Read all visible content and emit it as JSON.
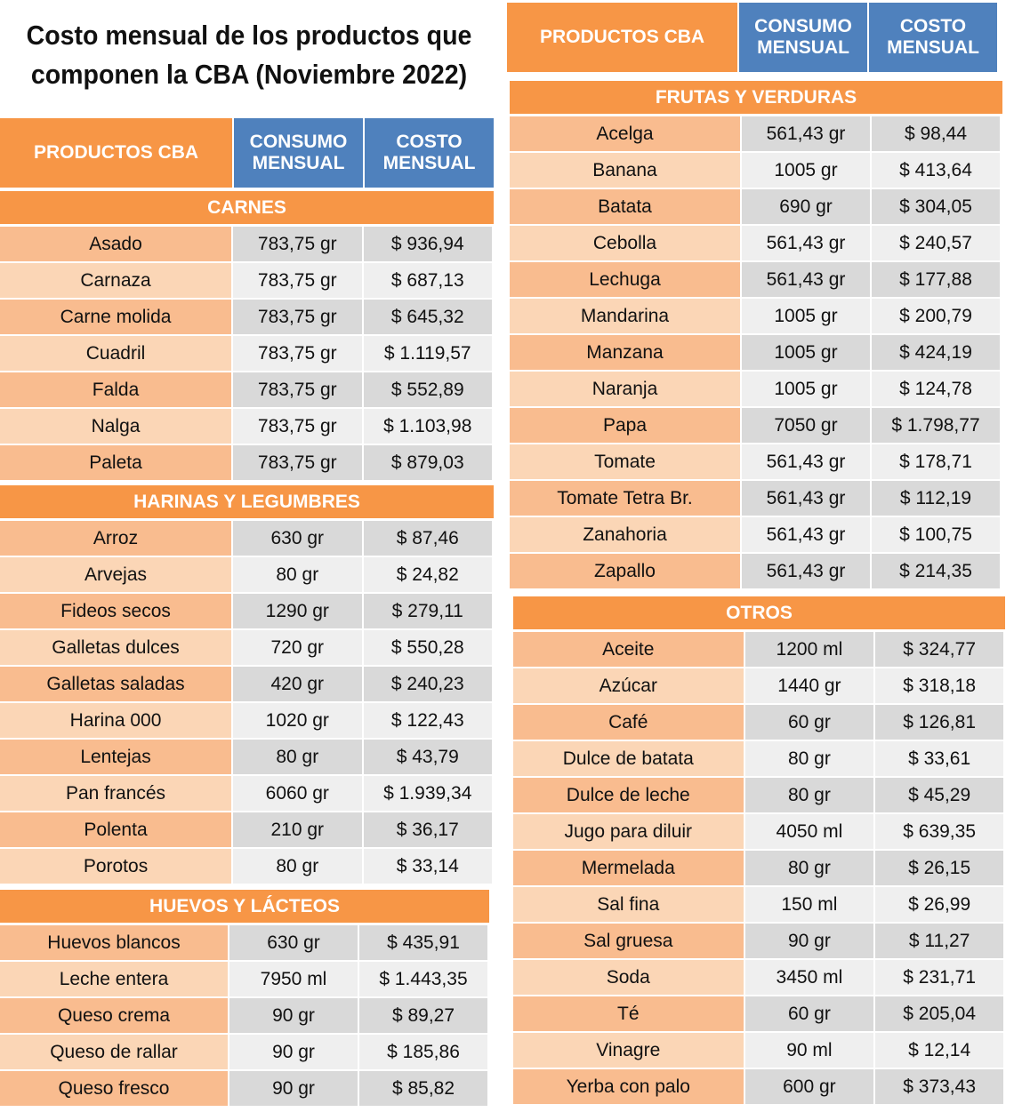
{
  "title": "Costo mensual de los productos que componen la CBA (Noviembre 2022)",
  "headers": {
    "producto": "PRODUCTOS CBA",
    "consumo": "CONSUMO MENSUAL",
    "costo": "COSTO MENSUAL"
  },
  "colors": {
    "orange": "#F79646",
    "blue": "#4F81BD"
  },
  "sections": [
    {
      "name": "CARNES",
      "rows": [
        [
          "Asado",
          "783,75 gr",
          "$ 936,94"
        ],
        [
          "Carnaza",
          "783,75 gr",
          "$ 687,13"
        ],
        [
          "Carne molida",
          "783,75 gr",
          "$ 645,32"
        ],
        [
          "Cuadril",
          "783,75 gr",
          "$ 1.119,57"
        ],
        [
          "Falda",
          "783,75 gr",
          "$ 552,89"
        ],
        [
          "Nalga",
          "783,75 gr",
          "$ 1.103,98"
        ],
        [
          "Paleta",
          "783,75 gr",
          "$ 879,03"
        ]
      ]
    },
    {
      "name": "HARINAS Y LEGUMBRES",
      "rows": [
        [
          "Arroz",
          "630 gr",
          "$ 87,46"
        ],
        [
          "Arvejas",
          "80 gr",
          "$ 24,82"
        ],
        [
          "Fideos secos",
          "1290 gr",
          "$ 279,11"
        ],
        [
          "Galletas dulces",
          "720 gr",
          "$ 550,28"
        ],
        [
          "Galletas saladas",
          "420 gr",
          "$ 240,23"
        ],
        [
          "Harina 000",
          "1020 gr",
          "$ 122,43"
        ],
        [
          "Lentejas",
          "80 gr",
          "$ 43,79"
        ],
        [
          "Pan francés",
          "6060 gr",
          "$ 1.939,34"
        ],
        [
          "Polenta",
          "210 gr",
          "$ 36,17"
        ],
        [
          "Porotos",
          "80 gr",
          "$ 33,14"
        ]
      ]
    },
    {
      "name": "HUEVOS Y LÁCTEOS",
      "rows": [
        [
          "Huevos blancos",
          "630 gr",
          "$ 435,91"
        ],
        [
          "Leche entera",
          "7950 ml",
          "$ 1.443,35"
        ],
        [
          "Queso crema",
          "90 gr",
          "$ 89,27"
        ],
        [
          "Queso de rallar",
          "90 gr",
          "$ 185,86"
        ],
        [
          "Queso fresco",
          "90 gr",
          "$ 85,82"
        ]
      ]
    },
    {
      "name": "FRUTAS Y VERDURAS",
      "rows": [
        [
          "Acelga",
          "561,43 gr",
          "$ 98,44"
        ],
        [
          "Banana",
          "1005 gr",
          "$ 413,64"
        ],
        [
          "Batata",
          "690 gr",
          "$ 304,05"
        ],
        [
          "Cebolla",
          "561,43 gr",
          "$ 240,57"
        ],
        [
          "Lechuga",
          "561,43 gr",
          "$ 177,88"
        ],
        [
          "Mandarina",
          "1005 gr",
          "$ 200,79"
        ],
        [
          "Manzana",
          "1005 gr",
          "$ 424,19"
        ],
        [
          "Naranja",
          "1005 gr",
          "$ 124,78"
        ],
        [
          "Papa",
          "7050 gr",
          "$ 1.798,77"
        ],
        [
          "Tomate",
          "561,43 gr",
          "$ 178,71"
        ],
        [
          "Tomate Tetra Br.",
          "561,43 gr",
          "$ 112,19"
        ],
        [
          "Zanahoria",
          "561,43 gr",
          "$ 100,75"
        ],
        [
          "Zapallo",
          "561,43 gr",
          "$ 214,35"
        ]
      ]
    },
    {
      "name": "OTROS",
      "rows": [
        [
          "Aceite",
          "1200 ml",
          "$ 324,77"
        ],
        [
          "Azúcar",
          "1440 gr",
          "$ 318,18"
        ],
        [
          "Café",
          "60 gr",
          "$ 126,81"
        ],
        [
          "Dulce de batata",
          "80 gr",
          "$ 33,61"
        ],
        [
          "Dulce de leche",
          "80 gr",
          "$ 45,29"
        ],
        [
          "Jugo para diluir",
          "4050 ml",
          "$ 639,35"
        ],
        [
          "Mermelada",
          "80 gr",
          "$ 26,15"
        ],
        [
          "Sal fina",
          "150 ml",
          "$ 26,99"
        ],
        [
          "Sal gruesa",
          "90 gr",
          "$ 11,27"
        ],
        [
          "Soda",
          "3450 ml",
          "$ 231,71"
        ],
        [
          "Té",
          "60 gr",
          "$ 205,04"
        ],
        [
          "Vinagre",
          "90 ml",
          "$ 12,14"
        ],
        [
          "Yerba con palo",
          "600 gr",
          "$ 373,43"
        ]
      ]
    }
  ]
}
